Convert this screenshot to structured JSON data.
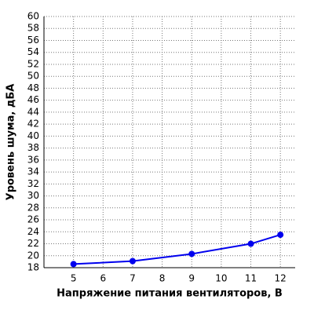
{
  "chart_data": {
    "type": "line",
    "x_label": "Напряжение питания вентиляторов, В",
    "y_label": "Уровень шума, дБА",
    "series": [
      {
        "color": "#0000ee",
        "x": [
          5,
          7,
          9,
          11,
          12
        ],
        "values": [
          18.6,
          19.1,
          20.3,
          22.0,
          23.5
        ]
      }
    ],
    "xlim": [
      4,
      12.5
    ],
    "xticks": [
      5,
      6,
      7,
      8,
      9,
      10,
      11,
      12
    ],
    "ylim": [
      18,
      60
    ],
    "yticks": [
      18,
      20,
      22,
      24,
      26,
      28,
      30,
      32,
      34,
      36,
      38,
      40,
      42,
      44,
      46,
      48,
      50,
      52,
      54,
      56,
      58,
      60
    ],
    "grid": true
  }
}
